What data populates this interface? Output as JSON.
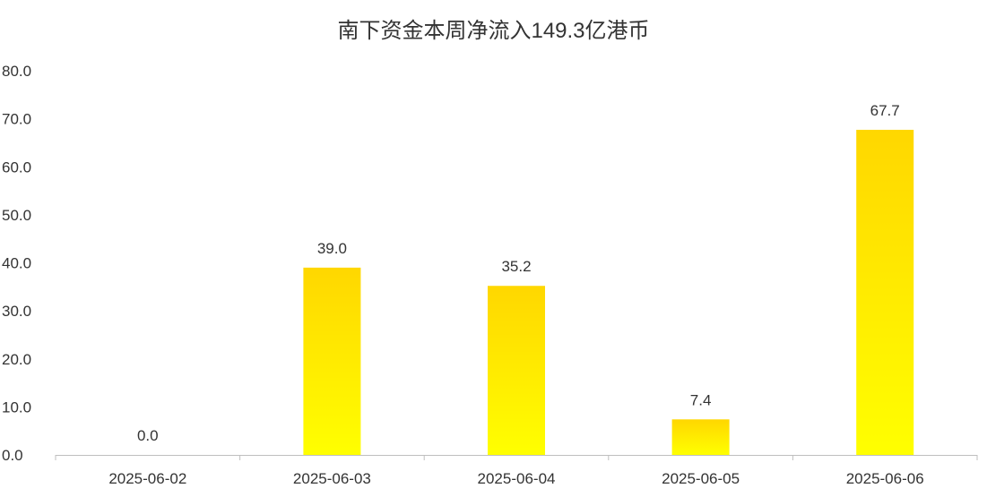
{
  "chart_data": {
    "type": "bar",
    "title": "南下资金本周净流入149.3亿港币",
    "xlabel": "",
    "ylabel": "",
    "categories": [
      "2025-06-02",
      "2025-06-03",
      "2025-06-04",
      "2025-06-05",
      "2025-06-06"
    ],
    "values": [
      0.0,
      39.0,
      35.2,
      7.4,
      67.7
    ],
    "data_labels": [
      "0.0",
      "39.0",
      "35.2",
      "7.4",
      "67.7"
    ],
    "ylim": [
      0,
      80
    ],
    "yticks": [
      "0.0",
      "10.0",
      "20.0",
      "30.0",
      "40.0",
      "50.0",
      "60.0",
      "70.0",
      "80.0"
    ],
    "grid": false,
    "legend": "none",
    "colors": {
      "bar_top": "#FFD700",
      "bar_bottom": "#FFFF00",
      "axis": "#BFBFBF",
      "text": "#333333"
    }
  }
}
